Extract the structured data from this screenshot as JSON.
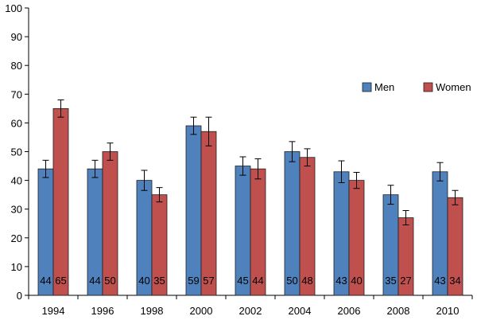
{
  "chart_data": {
    "type": "bar",
    "title": "",
    "xlabel": "",
    "ylabel": "",
    "ylim": [
      0,
      100
    ],
    "yticks": [
      0,
      10,
      20,
      30,
      40,
      50,
      60,
      70,
      80,
      90,
      100
    ],
    "grid": false,
    "legend_position": "right",
    "categories": [
      "1994",
      "1996",
      "1998",
      "2000",
      "2002",
      "2004",
      "2006",
      "2008",
      "2010"
    ],
    "series": [
      {
        "name": "Men",
        "color": "#4F81BD",
        "values": [
          44,
          44,
          40,
          59,
          45,
          50,
          43,
          35,
          43
        ],
        "error": [
          3,
          3,
          3.5,
          3,
          3.2,
          3.5,
          3.8,
          3.3,
          3.2
        ],
        "labels": [
          "44",
          "44",
          "40",
          "59",
          "45",
          "50",
          "43",
          "35",
          "43"
        ]
      },
      {
        "name": "Women",
        "color": "#C0504D",
        "values": [
          65,
          50,
          35,
          57,
          44,
          48,
          40,
          27,
          34
        ],
        "error": [
          3,
          3,
          2.5,
          5,
          3.5,
          3,
          2.8,
          2.5,
          2.5
        ],
        "labels": [
          "65",
          "50",
          "35",
          "57",
          "44",
          "48",
          "40",
          "27",
          "34"
        ]
      }
    ]
  }
}
